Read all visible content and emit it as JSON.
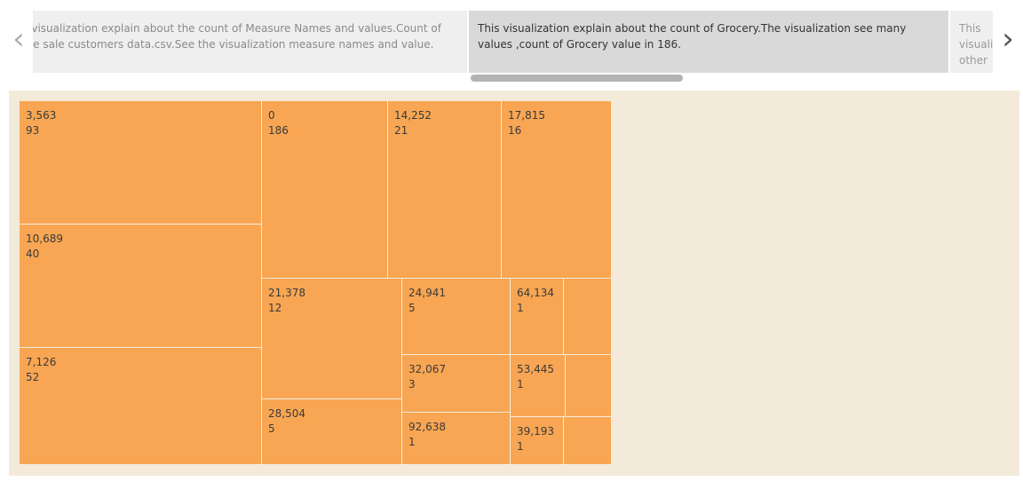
{
  "story": {
    "cards": [
      {
        "text": "This visualization explain about the count of Measure Names and values.Count of Whole sale customers data.csv.See the visualization measure names and value.",
        "state": "previous"
      },
      {
        "text": "This visualization explain about the count of Grocery.The visualization see many values ,count of Grocery value in 186.",
        "state": "selected"
      },
      {
        "text": "This visualization other",
        "state": "next"
      }
    ],
    "prev_icon": "chevron-left-icon",
    "next_icon": "chevron-right-icon"
  },
  "chart_data": {
    "type": "treemap",
    "colors": {
      "fill": "#f8a653",
      "background": "#f3eada",
      "border": "#f4ecdc"
    },
    "items": [
      {
        "label": "3,563",
        "count": 93
      },
      {
        "label": "10,689",
        "count": 40
      },
      {
        "label": "7,126",
        "count": 52
      },
      {
        "label": "0",
        "count": 186
      },
      {
        "label": "14,252",
        "count": 21
      },
      {
        "label": "17,815",
        "count": 16
      },
      {
        "label": "21,378",
        "count": 12
      },
      {
        "label": "28,504",
        "count": 5
      },
      {
        "label": "24,941",
        "count": 5
      },
      {
        "label": "32,067",
        "count": 3
      },
      {
        "label": "92,638",
        "count": 1
      },
      {
        "label": "64,134",
        "count": 1
      },
      {
        "label": "",
        "count": 1
      },
      {
        "label": "53,445",
        "count": 1
      },
      {
        "label": "",
        "count": 1
      },
      {
        "label": "39,193",
        "count": 1
      },
      {
        "label": "",
        "count": 1
      }
    ]
  }
}
